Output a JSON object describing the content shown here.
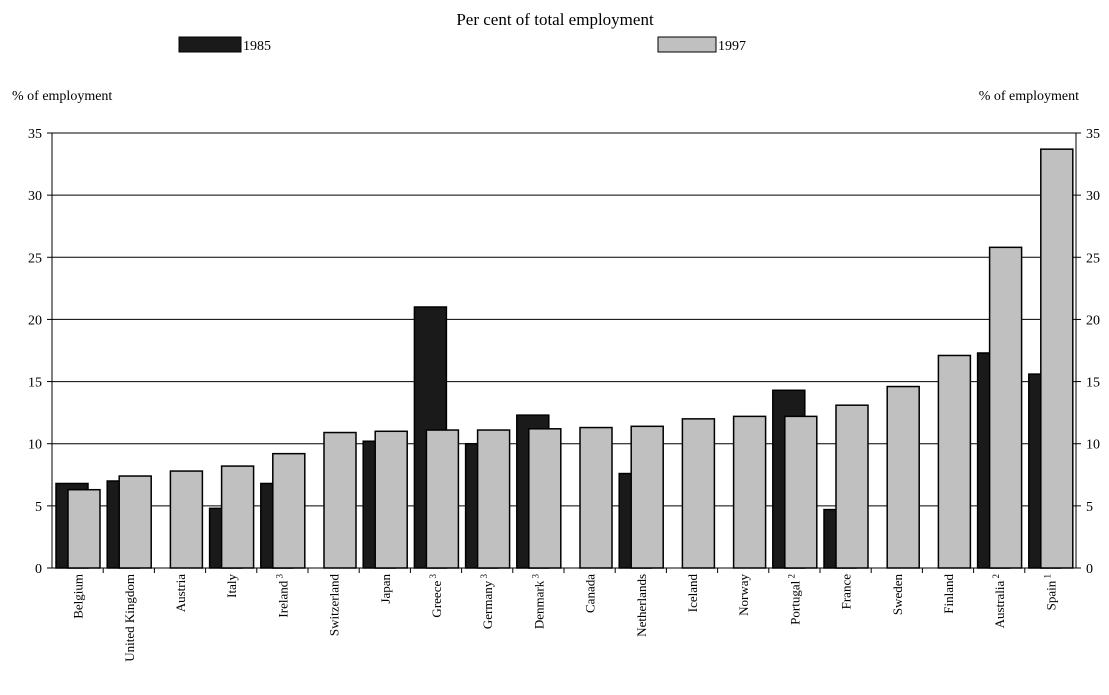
{
  "chart_data": {
    "type": "bar",
    "title": "Per cent of total employment",
    "ylabel_left": "% of employment",
    "ylabel_right": "% of employment",
    "ylim": [
      0,
      35
    ],
    "yticks": [
      "0",
      "5",
      "10",
      "15",
      "20",
      "25",
      "30",
      "35"
    ],
    "grid": true,
    "legend_placement": "top",
    "categories": [
      {
        "name": "Belgium",
        "sup": ""
      },
      {
        "name": "United Kingdom",
        "sup": ""
      },
      {
        "name": "Austria",
        "sup": ""
      },
      {
        "name": "Italy",
        "sup": ""
      },
      {
        "name": "Ireland",
        "sup": "3"
      },
      {
        "name": "Switzerland",
        "sup": ""
      },
      {
        "name": "Japan",
        "sup": ""
      },
      {
        "name": "Greece",
        "sup": "3"
      },
      {
        "name": "Germany",
        "sup": "3"
      },
      {
        "name": "Denmark",
        "sup": "3"
      },
      {
        "name": "Canada",
        "sup": ""
      },
      {
        "name": "Netherlands",
        "sup": ""
      },
      {
        "name": "Iceland",
        "sup": ""
      },
      {
        "name": "Norway",
        "sup": ""
      },
      {
        "name": "Portugal",
        "sup": "2"
      },
      {
        "name": "France",
        "sup": ""
      },
      {
        "name": "Sweden",
        "sup": ""
      },
      {
        "name": "Finland",
        "sup": ""
      },
      {
        "name": "Australia",
        "sup": "2"
      },
      {
        "name": "Spain",
        "sup": "1"
      }
    ],
    "series": [
      {
        "name": "1985",
        "color": "#1a1a1a",
        "values": [
          6.8,
          7.0,
          null,
          4.8,
          6.8,
          null,
          10.2,
          21.0,
          10.0,
          12.3,
          null,
          7.6,
          null,
          null,
          14.3,
          4.7,
          null,
          null,
          17.3,
          15.6
        ]
      },
      {
        "name": "1997",
        "color": "#c0c0c0",
        "values": [
          6.3,
          7.4,
          7.8,
          8.2,
          9.2,
          10.9,
          11.0,
          11.1,
          11.1,
          11.2,
          11.3,
          11.4,
          12.0,
          12.2,
          12.2,
          13.1,
          14.6,
          17.1,
          25.8,
          33.7
        ]
      }
    ]
  }
}
